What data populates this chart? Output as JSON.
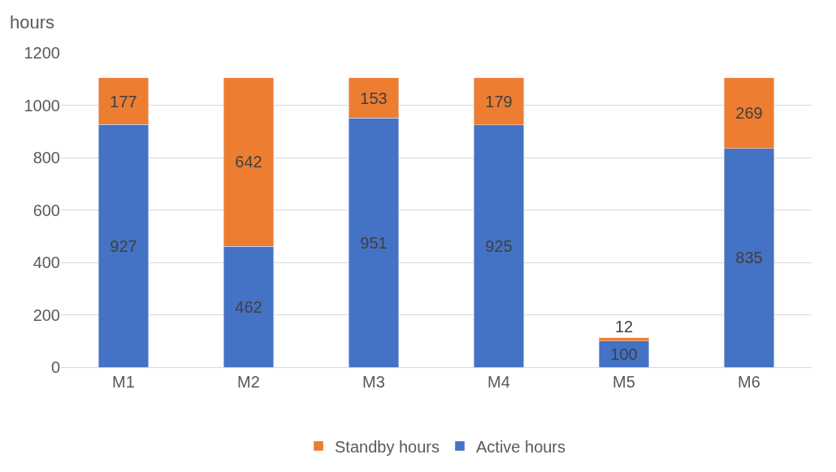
{
  "chart_data": {
    "type": "bar",
    "stacked": true,
    "ylabel": "hours",
    "categories": [
      "M1",
      "M2",
      "M3",
      "M4",
      "M5",
      "M6"
    ],
    "series": [
      {
        "name": "Active hours",
        "color": "#4472c4",
        "values": [
          927,
          462,
          951,
          925,
          100,
          835
        ]
      },
      {
        "name": "Standby hours",
        "color": "#ed7d31",
        "values": [
          177,
          642,
          153,
          179,
          12,
          269
        ]
      }
    ],
    "ylim": [
      0,
      1200
    ],
    "yticks": [
      0,
      200,
      400,
      600,
      800,
      1000,
      1200
    ],
    "grid": "y",
    "legend": "bottom",
    "data_labels": true
  }
}
